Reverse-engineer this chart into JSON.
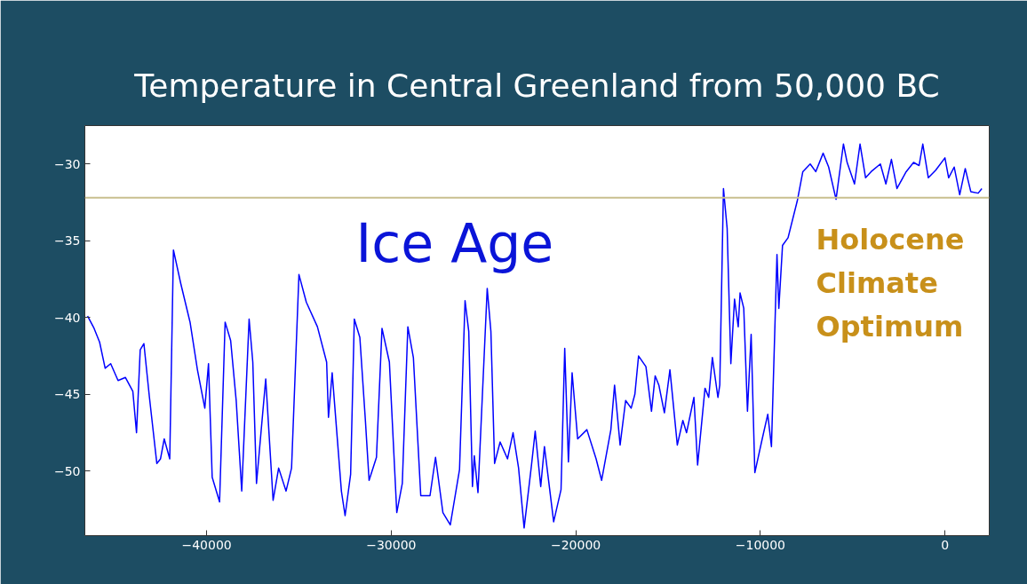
{
  "chart_data": {
    "type": "line",
    "title": "Temperature in Central Greenland from 50,000 BC",
    "x": [
      -46450,
      -46100,
      -45800,
      -45500,
      -45200,
      -44800,
      -44400,
      -44000,
      -43800,
      -43600,
      -43400,
      -43100,
      -42700,
      -42500,
      -42300,
      -42000,
      -41800,
      -41400,
      -40900,
      -40500,
      -40100,
      -39900,
      -39700,
      -39300,
      -39000,
      -38700,
      -38400,
      -38100,
      -37700,
      -37500,
      -37300,
      -36800,
      -36400,
      -36100,
      -35700,
      -35400,
      -35000,
      -34600,
      -34000,
      -33500,
      -33400,
      -33200,
      -32700,
      -32500,
      -32200,
      -32000,
      -31700,
      -31400,
      -31200,
      -30800,
      -30500,
      -30100,
      -29700,
      -29400,
      -29100,
      -28800,
      -28400,
      -27900,
      -27600,
      -27200,
      -26800,
      -26300,
      -26000,
      -25800,
      -25600,
      -25500,
      -25300,
      -24800,
      -24600,
      -24400,
      -24100,
      -23700,
      -23400,
      -23100,
      -22800,
      -22400,
      -22200,
      -21900,
      -21700,
      -21200,
      -20800,
      -20600,
      -20400,
      -20200,
      -19900,
      -19400,
      -18900,
      -18600,
      -18100,
      -17900,
      -17600,
      -17300,
      -17000,
      -16800,
      -16600,
      -16200,
      -15900,
      -15700,
      -15500,
      -15200,
      -14900,
      -14500,
      -14200,
      -14000,
      -13600,
      -13400,
      -13000,
      -12800,
      -12600,
      -12300,
      -12200,
      -12000,
      -11800,
      -11600,
      -11400,
      -11200,
      -11100,
      -10900,
      -10700,
      -10500,
      -10300,
      -9900,
      -9600,
      -9400,
      -9100,
      -9000,
      -8800,
      -8500,
      -8000,
      -7700,
      -7300,
      -7000,
      -6600,
      -6300,
      -5900,
      -5500,
      -5300,
      -4900,
      -4600,
      -4300,
      -4000,
      -3500,
      -3200,
      -2900,
      -2600,
      -2100,
      -1700,
      -1400,
      -1200,
      -900,
      -500,
      0,
      200,
      500,
      800,
      1100,
      1400,
      1800,
      2000
    ],
    "values": [
      -39.9,
      -40.7,
      -41.6,
      -43.3,
      -43.0,
      -44.1,
      -43.9,
      -44.8,
      -47.5,
      -42.1,
      -41.7,
      -45.2,
      -49.5,
      -49.2,
      -47.9,
      -49.2,
      -35.6,
      -37.8,
      -40.3,
      -43.4,
      -45.9,
      -43.0,
      -50.4,
      -52.0,
      -40.3,
      -41.5,
      -45.4,
      -51.3,
      -40.1,
      -42.9,
      -50.8,
      -44.0,
      -51.9,
      -49.8,
      -51.3,
      -49.8,
      -37.2,
      -39.0,
      -40.6,
      -42.9,
      -46.5,
      -43.6,
      -51.3,
      -52.9,
      -50.2,
      -40.1,
      -41.3,
      -46.7,
      -50.6,
      -49.1,
      -40.7,
      -42.9,
      -52.7,
      -50.8,
      -40.6,
      -42.6,
      -51.6,
      -51.6,
      -49.1,
      -52.7,
      -53.5,
      -49.9,
      -38.9,
      -40.9,
      -51.0,
      -49.0,
      -51.4,
      -38.1,
      -40.9,
      -49.5,
      -48.1,
      -49.2,
      -47.5,
      -49.8,
      -53.7,
      -49.6,
      -47.4,
      -51.0,
      -48.4,
      -53.3,
      -51.2,
      -42.0,
      -49.4,
      -43.6,
      -47.9,
      -47.3,
      -49.2,
      -50.6,
      -47.3,
      -44.4,
      -48.3,
      -45.4,
      -45.9,
      -45.0,
      -42.5,
      -43.2,
      -46.1,
      -43.8,
      -44.4,
      -46.2,
      -43.4,
      -48.3,
      -46.7,
      -47.5,
      -45.2,
      -49.6,
      -44.6,
      -45.2,
      -42.6,
      -45.2,
      -44.4,
      -31.6,
      -34.2,
      -43.0,
      -38.8,
      -40.6,
      -38.4,
      -39.4,
      -46.1,
      -41.1,
      -50.1,
      -47.9,
      -46.3,
      -48.4,
      -35.9,
      -39.4,
      -35.3,
      -34.8,
      -32.4,
      -30.5,
      -30.0,
      -30.5,
      -29.3,
      -30.2,
      -32.3,
      -28.7,
      -29.9,
      -31.3,
      -28.7,
      -30.9,
      -30.5,
      -30.0,
      -31.3,
      -29.7,
      -31.6,
      -30.5,
      -29.9,
      -30.1,
      -28.7,
      -30.9,
      -30.4,
      -29.6,
      -30.9,
      -30.2,
      -32.0,
      -30.3,
      -31.8,
      -31.9,
      -31.6
    ],
    "color": "#0000ff",
    "xlim": [
      -46600,
      2400
    ],
    "ylim": [
      -54.2,
      -27.5
    ],
    "xticks": [
      -40000,
      -30000,
      -20000,
      -10000,
      0
    ],
    "yticks": [
      -50,
      -45,
      -40,
      -35,
      -30
    ],
    "grid": false,
    "ref_lines": [
      {
        "axis": "y",
        "value": -32.2,
        "color": "#c9bf8f"
      }
    ],
    "annotations": [
      "Ice Age",
      "Holocene\nClimate\nOptimum"
    ]
  }
}
